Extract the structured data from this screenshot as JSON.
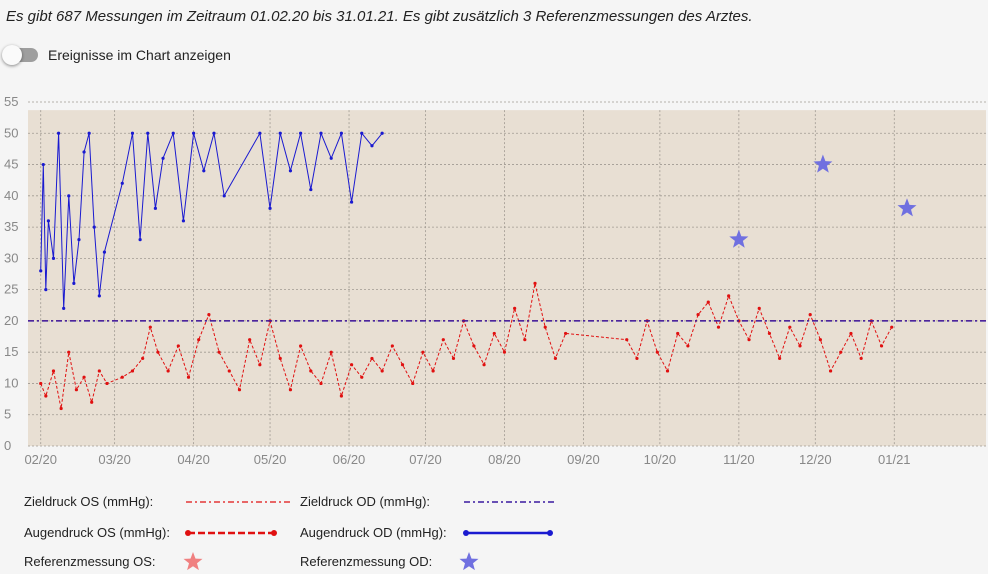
{
  "summary": "Es gibt 687 Messungen im Zeitraum 01.02.20 bis 31.01.21. Es gibt zusätzlich 3 Referenzmessungen des Arztes.",
  "toggle": {
    "label": "Ereignisse im Chart anzeigen",
    "on": false
  },
  "colors": {
    "plot_bg": "#e8dfd3",
    "os": "#e01010",
    "od": "#1a1ad0",
    "target_os": "#e01010",
    "target_od": "#3a1aa0",
    "ref_os": "#f08080",
    "ref_od": "#7070e0",
    "grid": "#a09a92"
  },
  "legend": {
    "target_os": "Zieldruck OS (mmHg):",
    "target_od": "Zieldruck OD (mmHg):",
    "pressure_os": "Augendruck OS (mmHg):",
    "pressure_od": "Augendruck OD (mmHg):",
    "ref_os": "Referenzmessung OS:",
    "ref_od": "Referenzmessung OD:"
  },
  "chart_data": {
    "type": "line",
    "x_type": "date",
    "xlim": [
      "2020-01-27",
      "2021-02-06"
    ],
    "ylim": [
      0,
      55
    ],
    "y_ticks": [
      0,
      5,
      10,
      15,
      20,
      25,
      30,
      35,
      40,
      45,
      50,
      55
    ],
    "x_ticks": [
      {
        "date": "2020-02-01",
        "label": "02/20"
      },
      {
        "date": "2020-03-01",
        "label": "03/20"
      },
      {
        "date": "2020-04-01",
        "label": "04/20"
      },
      {
        "date": "2020-05-01",
        "label": "05/20"
      },
      {
        "date": "2020-06-01",
        "label": "06/20"
      },
      {
        "date": "2020-07-01",
        "label": "07/20"
      },
      {
        "date": "2020-08-01",
        "label": "08/20"
      },
      {
        "date": "2020-09-01",
        "label": "09/20"
      },
      {
        "date": "2020-10-01",
        "label": "10/20"
      },
      {
        "date": "2020-11-01",
        "label": "11/20"
      },
      {
        "date": "2020-12-01",
        "label": "12/20"
      },
      {
        "date": "2021-01-01",
        "label": "01/21"
      }
    ],
    "grid": true,
    "target_os": 20,
    "target_od": 20,
    "series": [
      {
        "name": "Augendruck OS (mmHg)",
        "eye": "OS",
        "points": [
          [
            "2020-02-01",
            10
          ],
          [
            "2020-02-03",
            8
          ],
          [
            "2020-02-06",
            12
          ],
          [
            "2020-02-09",
            6
          ],
          [
            "2020-02-12",
            15
          ],
          [
            "2020-02-15",
            9
          ],
          [
            "2020-02-18",
            11
          ],
          [
            "2020-02-21",
            7
          ],
          [
            "2020-02-24",
            12
          ],
          [
            "2020-02-27",
            10
          ],
          [
            "2020-03-04",
            11
          ],
          [
            "2020-03-08",
            12
          ],
          [
            "2020-03-12",
            14
          ],
          [
            "2020-03-15",
            19
          ],
          [
            "2020-03-18",
            15
          ],
          [
            "2020-03-22",
            12
          ],
          [
            "2020-03-26",
            16
          ],
          [
            "2020-03-30",
            11
          ],
          [
            "2020-04-03",
            17
          ],
          [
            "2020-04-07",
            21
          ],
          [
            "2020-04-11",
            15
          ],
          [
            "2020-04-15",
            12
          ],
          [
            "2020-04-19",
            9
          ],
          [
            "2020-04-23",
            17
          ],
          [
            "2020-04-27",
            13
          ],
          [
            "2020-05-01",
            20
          ],
          [
            "2020-05-05",
            14
          ],
          [
            "2020-05-09",
            9
          ],
          [
            "2020-05-13",
            16
          ],
          [
            "2020-05-17",
            12
          ],
          [
            "2020-05-21",
            10
          ],
          [
            "2020-05-25",
            15
          ],
          [
            "2020-05-29",
            8
          ],
          [
            "2020-06-02",
            13
          ],
          [
            "2020-06-06",
            11
          ],
          [
            "2020-06-10",
            14
          ],
          [
            "2020-06-14",
            12
          ],
          [
            "2020-06-18",
            16
          ],
          [
            "2020-06-22",
            13
          ],
          [
            "2020-06-26",
            10
          ],
          [
            "2020-06-30",
            15
          ],
          [
            "2020-07-04",
            12
          ],
          [
            "2020-07-08",
            17
          ],
          [
            "2020-07-12",
            14
          ],
          [
            "2020-07-16",
            20
          ],
          [
            "2020-07-20",
            16
          ],
          [
            "2020-07-24",
            13
          ],
          [
            "2020-07-28",
            18
          ],
          [
            "2020-08-01",
            15
          ],
          [
            "2020-08-05",
            22
          ],
          [
            "2020-08-09",
            17
          ],
          [
            "2020-08-13",
            26
          ],
          [
            "2020-08-17",
            19
          ],
          [
            "2020-08-21",
            14
          ],
          [
            "2020-08-25",
            18
          ],
          [
            "2020-09-18",
            17
          ],
          [
            "2020-09-22",
            14
          ],
          [
            "2020-09-26",
            20
          ],
          [
            "2020-09-30",
            15
          ],
          [
            "2020-10-04",
            12
          ],
          [
            "2020-10-08",
            18
          ],
          [
            "2020-10-12",
            16
          ],
          [
            "2020-10-16",
            21
          ],
          [
            "2020-10-20",
            23
          ],
          [
            "2020-10-24",
            19
          ],
          [
            "2020-10-28",
            24
          ],
          [
            "2020-11-01",
            20
          ],
          [
            "2020-11-05",
            17
          ],
          [
            "2020-11-09",
            22
          ],
          [
            "2020-11-13",
            18
          ],
          [
            "2020-11-17",
            14
          ],
          [
            "2020-11-21",
            19
          ],
          [
            "2020-11-25",
            16
          ],
          [
            "2020-11-29",
            21
          ],
          [
            "2020-12-03",
            17
          ],
          [
            "2020-12-07",
            12
          ],
          [
            "2020-12-11",
            15
          ],
          [
            "2020-12-15",
            18
          ],
          [
            "2020-12-19",
            14
          ],
          [
            "2020-12-23",
            20
          ],
          [
            "2020-12-27",
            16
          ],
          [
            "2020-12-31",
            19
          ]
        ]
      },
      {
        "name": "Augendruck OD (mmHg)",
        "eye": "OD",
        "points": [
          [
            "2020-02-01",
            28
          ],
          [
            "2020-02-02",
            45
          ],
          [
            "2020-02-03",
            25
          ],
          [
            "2020-02-04",
            36
          ],
          [
            "2020-02-06",
            30
          ],
          [
            "2020-02-08",
            50
          ],
          [
            "2020-02-10",
            22
          ],
          [
            "2020-02-12",
            40
          ],
          [
            "2020-02-14",
            26
          ],
          [
            "2020-02-16",
            33
          ],
          [
            "2020-02-18",
            47
          ],
          [
            "2020-02-20",
            50
          ],
          [
            "2020-02-22",
            35
          ],
          [
            "2020-02-24",
            24
          ],
          [
            "2020-02-26",
            31
          ],
          [
            "2020-03-04",
            42
          ],
          [
            "2020-03-08",
            50
          ],
          [
            "2020-03-11",
            33
          ],
          [
            "2020-03-14",
            50
          ],
          [
            "2020-03-17",
            38
          ],
          [
            "2020-03-20",
            46
          ],
          [
            "2020-03-24",
            50
          ],
          [
            "2020-03-28",
            36
          ],
          [
            "2020-04-01",
            50
          ],
          [
            "2020-04-05",
            44
          ],
          [
            "2020-04-09",
            50
          ],
          [
            "2020-04-13",
            40
          ],
          [
            "2020-04-27",
            50
          ],
          [
            "2020-05-01",
            38
          ],
          [
            "2020-05-05",
            50
          ],
          [
            "2020-05-09",
            44
          ],
          [
            "2020-05-13",
            50
          ],
          [
            "2020-05-17",
            41
          ],
          [
            "2020-05-21",
            50
          ],
          [
            "2020-05-25",
            46
          ],
          [
            "2020-05-29",
            50
          ],
          [
            "2020-06-02",
            39
          ],
          [
            "2020-06-06",
            50
          ],
          [
            "2020-06-10",
            48
          ],
          [
            "2020-06-14",
            50
          ]
        ]
      }
    ],
    "reference_measurements": [
      {
        "eye": "OD",
        "date": "2020-11-01",
        "value": 33
      },
      {
        "eye": "OD",
        "date": "2020-12-04",
        "value": 45
      },
      {
        "eye": "OD",
        "date": "2021-01-06",
        "value": 38
      }
    ]
  }
}
